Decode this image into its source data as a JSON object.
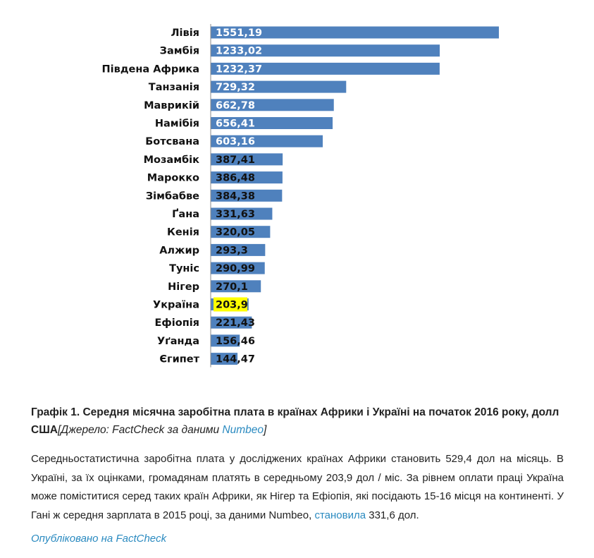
{
  "chart_data": {
    "type": "bar",
    "orientation": "horizontal",
    "categories": [
      "Лівія",
      "Замбія",
      "Південа Африка",
      "Танзанія",
      "Маврикій",
      "Намібія",
      "Ботсвана",
      "Мозамбік",
      "Марокко",
      "Зімбабве",
      "Ґана",
      "Кенія",
      "Алжир",
      "Туніс",
      "Нігер",
      "Україна",
      "Ефіопія",
      "Уґанда",
      "Єгипет"
    ],
    "values": [
      1551.19,
      1233.02,
      1232.37,
      729.32,
      662.78,
      656.41,
      603.16,
      387.41,
      386.48,
      384.38,
      331.63,
      320.05,
      293.3,
      290.99,
      270.1,
      203.9,
      221.43,
      156.46,
      144.47
    ],
    "value_labels": [
      "1551,19",
      "1233,02",
      "1232,37",
      "729,32",
      "662,78",
      "656,41",
      "603,16",
      "387,41",
      "386,48",
      "384,38",
      "331,63",
      "320,05",
      "293,3",
      "290,99",
      "270,1",
      "203,9",
      "221,43",
      "156,46",
      "144,47"
    ],
    "highlight_category": "Україна",
    "colors": {
      "bar": "#4f81bd",
      "highlight": "#ffff00",
      "label_light": "#ffffff",
      "label_dark": "#111111"
    },
    "xlim": [
      0,
      1600
    ],
    "grid": false,
    "title": "",
    "xlabel": "",
    "ylabel": ""
  },
  "caption": {
    "title": "Графік 1. Середня місячна заробітна плата в країнах Африки і Україні на початок 2016 року, долл США",
    "source_prefix": "[Джерело: FactCheck за даними ",
    "source_link": "Numbeo",
    "source_suffix": "]"
  },
  "paragraph": {
    "text_before_link": "Середньостатистична заробітна плата у досліджених країнах Африки становить 529,4 дол на місяць. В Україні, за їх оцінками, громадянам платять в середньому 203,9 дол / міс. За рівнем оплати праці Україна може поміститися серед таких країн Африки, як Нігер та Ефіопія, які посідають 15-16 місця на континенті. У Гані ж середня зарплата в 2015 році, за даними Numbeo, ",
    "link_text": "становила",
    "text_after_link": " 331,6 дол."
  },
  "footer": {
    "text": "Опубліковано на FactCheck"
  }
}
